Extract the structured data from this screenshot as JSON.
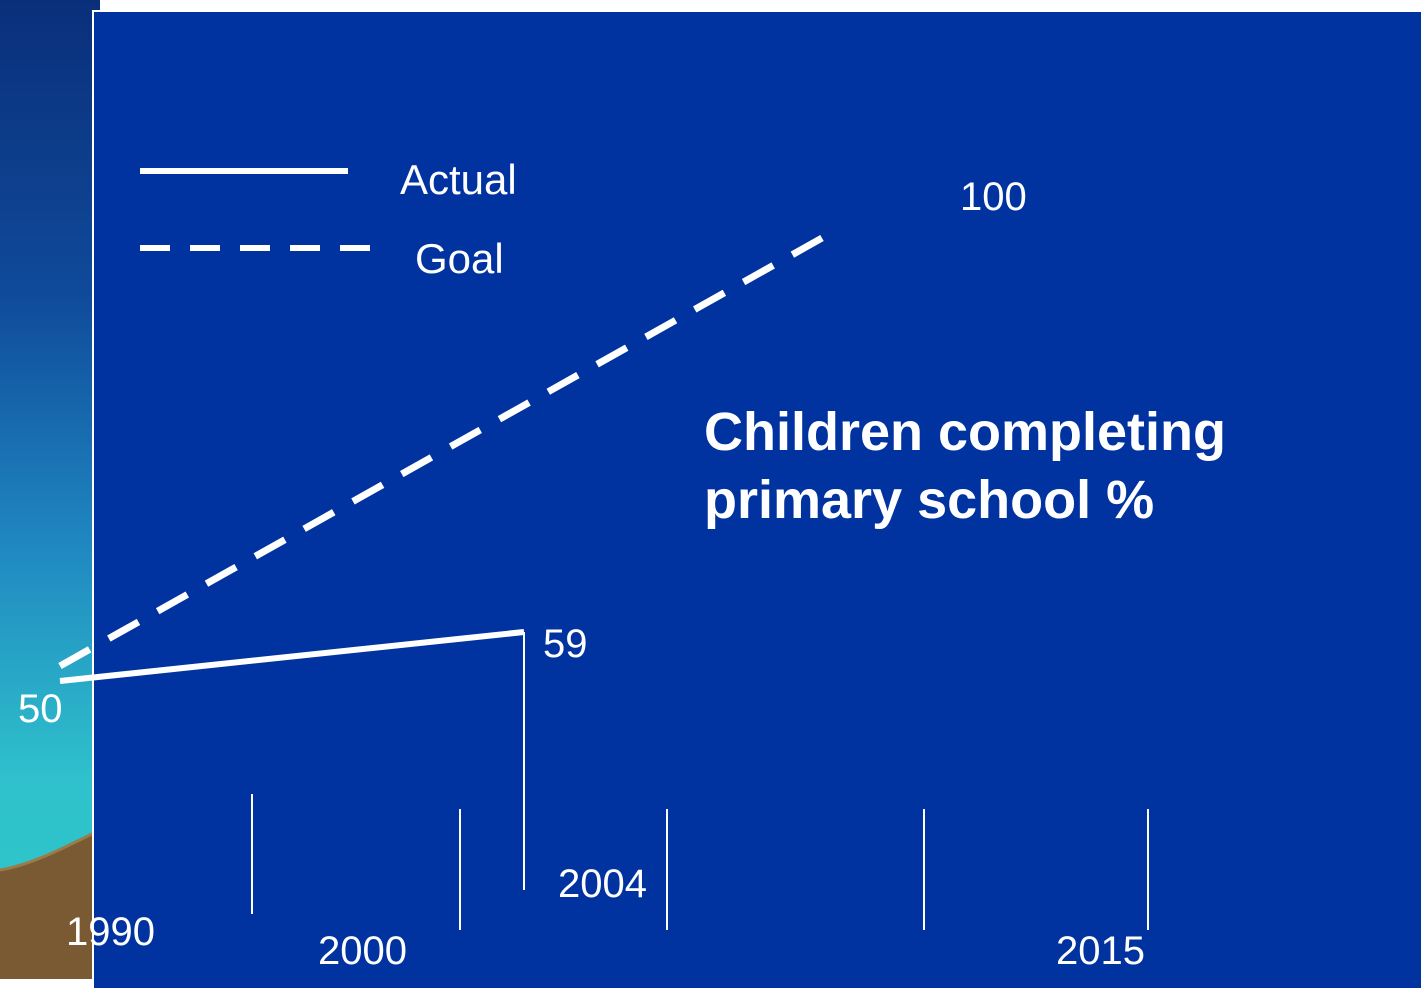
{
  "chart_data": {
    "type": "line",
    "title": "Children completing primary school %",
    "xlabel": "",
    "ylabel": "",
    "x_tick_labels": [
      "1990",
      "2000",
      "2004",
      "2015"
    ],
    "series": [
      {
        "name": "Actual",
        "style": "solid",
        "x": [
          1990,
          2004
        ],
        "y": [
          50,
          59
        ]
      },
      {
        "name": "Goal",
        "style": "dashed",
        "x": [
          1990,
          2015
        ],
        "y": [
          50,
          100
        ]
      }
    ],
    "data_labels": [
      {
        "text": "50",
        "series": "Actual",
        "x": 1990,
        "y": 50
      },
      {
        "text": "59",
        "series": "Actual",
        "x": 2004,
        "y": 59
      },
      {
        "text": "100",
        "series": "Goal",
        "x": 2015,
        "y": 100
      }
    ],
    "legend": {
      "placement": "top-left"
    },
    "colors": {
      "background": "#0033a0",
      "lines": "#ffffff",
      "text": "#ffffff"
    }
  }
}
